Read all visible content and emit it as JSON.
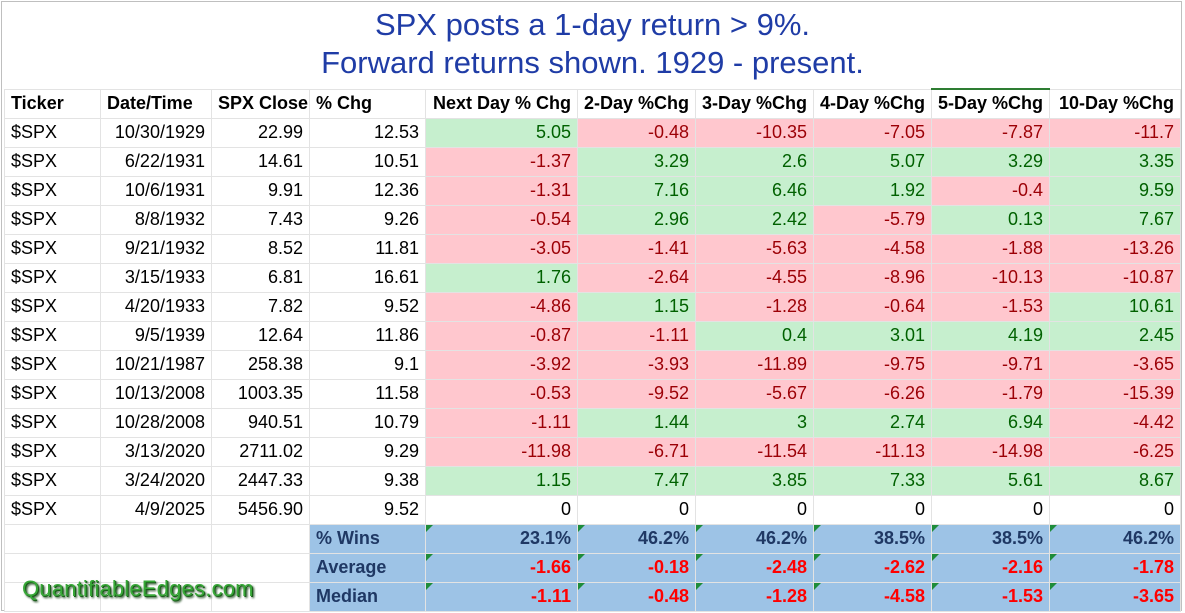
{
  "title": {
    "line1": "SPX posts a 1-day return > 9%.",
    "line2": "Forward returns shown. 1929 - present."
  },
  "columns": [
    "Ticker",
    "Date/Time",
    "SPX Close",
    "% Chg",
    "Next Day % Chg",
    "2-Day %Chg",
    "3-Day %Chg",
    "4-Day %Chg",
    "5-Day %Chg",
    "10-Day %Chg"
  ],
  "rows": [
    {
      "ticker": "$SPX",
      "date": "10/30/1929",
      "close": "22.99",
      "chg": "12.53",
      "fwd": [
        "5.05",
        "-0.48",
        "-10.35",
        "-7.05",
        "-7.87",
        "-11.7"
      ]
    },
    {
      "ticker": "$SPX",
      "date": "6/22/1931",
      "close": "14.61",
      "chg": "10.51",
      "fwd": [
        "-1.37",
        "3.29",
        "2.6",
        "5.07",
        "3.29",
        "3.35"
      ]
    },
    {
      "ticker": "$SPX",
      "date": "10/6/1931",
      "close": "9.91",
      "chg": "12.36",
      "fwd": [
        "-1.31",
        "7.16",
        "6.46",
        "1.92",
        "-0.4",
        "9.59"
      ]
    },
    {
      "ticker": "$SPX",
      "date": "8/8/1932",
      "close": "7.43",
      "chg": "9.26",
      "fwd": [
        "-0.54",
        "2.96",
        "2.42",
        "-5.79",
        "0.13",
        "7.67"
      ]
    },
    {
      "ticker": "$SPX",
      "date": "9/21/1932",
      "close": "8.52",
      "chg": "11.81",
      "fwd": [
        "-3.05",
        "-1.41",
        "-5.63",
        "-4.58",
        "-1.88",
        "-13.26"
      ]
    },
    {
      "ticker": "$SPX",
      "date": "3/15/1933",
      "close": "6.81",
      "chg": "16.61",
      "fwd": [
        "1.76",
        "-2.64",
        "-4.55",
        "-8.96",
        "-10.13",
        "-10.87"
      ]
    },
    {
      "ticker": "$SPX",
      "date": "4/20/1933",
      "close": "7.82",
      "chg": "9.52",
      "fwd": [
        "-4.86",
        "1.15",
        "-1.28",
        "-0.64",
        "-1.53",
        "10.61"
      ]
    },
    {
      "ticker": "$SPX",
      "date": "9/5/1939",
      "close": "12.64",
      "chg": "11.86",
      "fwd": [
        "-0.87",
        "-1.11",
        "0.4",
        "3.01",
        "4.19",
        "2.45"
      ]
    },
    {
      "ticker": "$SPX",
      "date": "10/21/1987",
      "close": "258.38",
      "chg": "9.1",
      "fwd": [
        "-3.92",
        "-3.93",
        "-11.89",
        "-9.75",
        "-9.71",
        "-3.65"
      ]
    },
    {
      "ticker": "$SPX",
      "date": "10/13/2008",
      "close": "1003.35",
      "chg": "11.58",
      "fwd": [
        "-0.53",
        "-9.52",
        "-5.67",
        "-6.26",
        "-1.79",
        "-15.39"
      ]
    },
    {
      "ticker": "$SPX",
      "date": "10/28/2008",
      "close": "940.51",
      "chg": "10.79",
      "fwd": [
        "-1.11",
        "1.44",
        "3",
        "2.74",
        "6.94",
        "-4.42"
      ]
    },
    {
      "ticker": "$SPX",
      "date": "3/13/2020",
      "close": "2711.02",
      "chg": "9.29",
      "fwd": [
        "-11.98",
        "-6.71",
        "-11.54",
        "-11.13",
        "-14.98",
        "-6.25"
      ]
    },
    {
      "ticker": "$SPX",
      "date": "3/24/2020",
      "close": "2447.33",
      "chg": "9.38",
      "fwd": [
        "1.15",
        "7.47",
        "3.85",
        "7.33",
        "5.61",
        "8.67"
      ]
    },
    {
      "ticker": "$SPX",
      "date": "4/9/2025",
      "close": "5456.90",
      "chg": "9.52",
      "fwd": [
        "0",
        "0",
        "0",
        "0",
        "0",
        "0"
      ]
    }
  ],
  "stats": [
    {
      "label": "% Wins",
      "values": [
        "23.1%",
        "46.2%",
        "46.2%",
        "38.5%",
        "38.5%",
        "46.2%"
      ]
    },
    {
      "label": "Average",
      "values": [
        "-1.66",
        "-0.18",
        "-2.48",
        "-2.62",
        "-2.16",
        "-1.78"
      ]
    },
    {
      "label": "Median",
      "values": [
        "-1.11",
        "-0.48",
        "-1.28",
        "-4.58",
        "-1.53",
        "-3.65"
      ]
    }
  ],
  "watermark": "QuantifiableEdges.com",
  "colors": {
    "title": "#1f3ca6",
    "positive_fill": "#c6efce",
    "positive_text": "#006100",
    "negative_fill": "#ffc7ce",
    "negative_text": "#9c0006",
    "stats_fill": "#9dc3e6",
    "stats_negative_text": "#ff0000",
    "watermark": "#38a838"
  }
}
